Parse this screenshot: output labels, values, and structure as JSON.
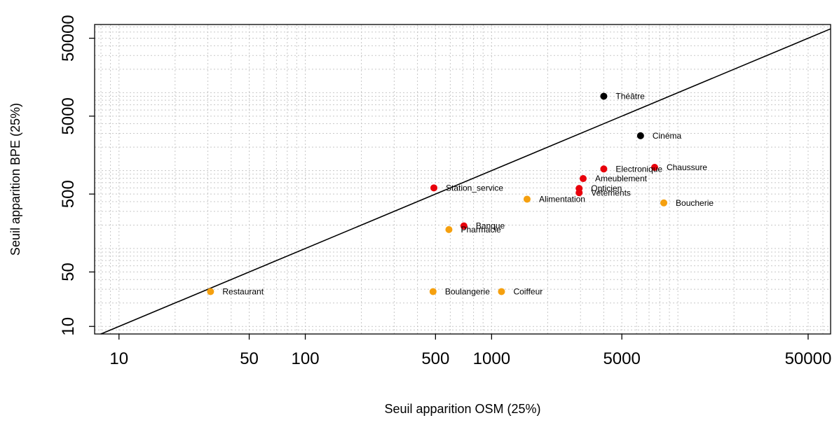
{
  "chart_data": {
    "type": "scatter",
    "xlabel": "Seuil apparition OSM (25%)",
    "ylabel": "Seuil apparition BPE (25%)",
    "xscale": "log",
    "yscale": "log",
    "xlim": [
      7.4,
      66000
    ],
    "ylim": [
      8.0,
      75000
    ],
    "xticks": [
      10,
      50,
      100,
      500,
      1000,
      5000,
      50000
    ],
    "yticks": [
      10,
      50,
      500,
      5000,
      50000
    ],
    "grid": true,
    "reference_line": "y = x",
    "colors": {
      "black": "#000000",
      "red": "#e8000b",
      "orange": "#f5a00f"
    },
    "points": [
      {
        "label": "Théâtre",
        "x": 4000,
        "y": 9000,
        "color": "black"
      },
      {
        "label": "Cinéma",
        "x": 6300,
        "y": 2800,
        "color": "black"
      },
      {
        "label": "Chaussure",
        "x": 7500,
        "y": 1100,
        "color": "red"
      },
      {
        "label": "Electronique",
        "x": 4000,
        "y": 1050,
        "color": "red"
      },
      {
        "label": "Ameublement",
        "x": 3100,
        "y": 790,
        "color": "red"
      },
      {
        "label": "Station_service",
        "x": 490,
        "y": 600,
        "color": "red"
      },
      {
        "label": "Opticien",
        "x": 2950,
        "y": 590,
        "color": "red"
      },
      {
        "label": "Vetements",
        "x": 2950,
        "y": 520,
        "color": "red"
      },
      {
        "label": "Banque",
        "x": 710,
        "y": 195,
        "color": "red"
      },
      {
        "label": "Alimentation",
        "x": 1550,
        "y": 430,
        "color": "orange"
      },
      {
        "label": "Boucherie",
        "x": 8400,
        "y": 385,
        "color": "orange"
      },
      {
        "label": "Pharmacie",
        "x": 590,
        "y": 175,
        "color": "orange"
      },
      {
        "label": "Restaurant",
        "x": 31,
        "y": 28,
        "color": "orange"
      },
      {
        "label": "Boulangerie",
        "x": 485,
        "y": 28,
        "color": "orange"
      },
      {
        "label": "Coiffeur",
        "x": 1130,
        "y": 28,
        "color": "orange"
      }
    ]
  }
}
